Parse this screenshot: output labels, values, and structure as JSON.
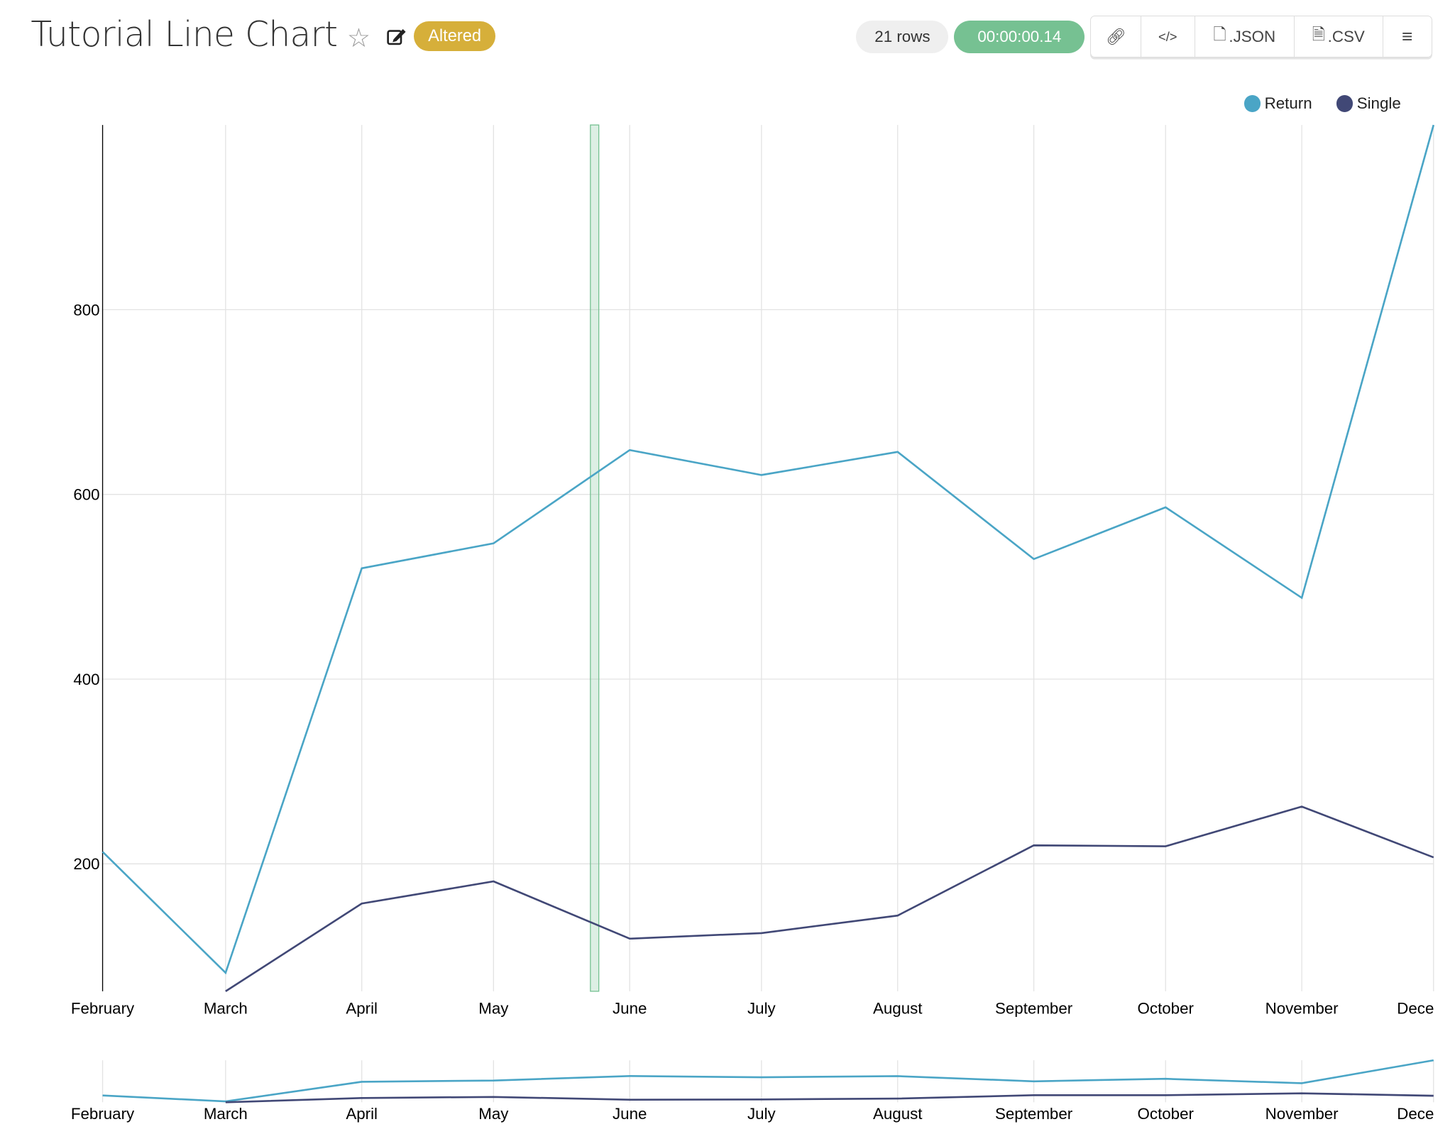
{
  "header": {
    "title": "Tutorial Line Chart",
    "star_icon": "star-outline-icon",
    "edit_icon": "edit-icon",
    "badge": "Altered",
    "row_count": "21 rows",
    "timer": "00:00:00.14",
    "buttons": [
      {
        "icon": "link-icon",
        "label": ""
      },
      {
        "icon": "code-icon",
        "label": ""
      },
      {
        "icon": "file-code-icon",
        "label": ".JSON"
      },
      {
        "icon": "file-text-icon",
        "label": ".CSV"
      },
      {
        "icon": "menu-icon",
        "label": ""
      }
    ]
  },
  "colors": {
    "badge": "#d6af3a",
    "timer": "#76c192",
    "return": "#4aa5c6",
    "single": "#414876",
    "highlight": "#76c192"
  },
  "chart_data": {
    "type": "line",
    "title": "",
    "xlabel": "",
    "ylabel": "",
    "categories": [
      "February",
      "March",
      "April",
      "May",
      "June",
      "July",
      "August",
      "September",
      "October",
      "November",
      "December"
    ],
    "x_tick_labels": [
      "February",
      "March",
      "April",
      "May",
      "June",
      "July",
      "August",
      "September",
      "October",
      "November",
      "December"
    ],
    "y_ticks": [
      200,
      400,
      600,
      800
    ],
    "ylim": [
      62,
      1000
    ],
    "grid": true,
    "legend": "top-right",
    "series": [
      {
        "name": "Return",
        "color": "#4aa5c6",
        "values": [
          213,
          82,
          520,
          547,
          648,
          621,
          646,
          530,
          586,
          488,
          1000
        ]
      },
      {
        "name": "Single",
        "color": "#414876",
        "values": [
          null,
          62,
          157,
          181,
          119,
          125,
          144,
          220,
          219,
          262,
          207
        ]
      }
    ],
    "overview_brush": true
  }
}
